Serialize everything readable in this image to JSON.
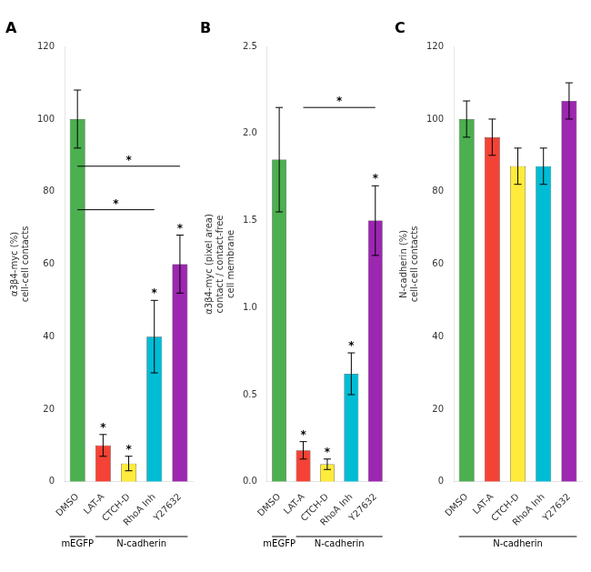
{
  "chart_data": [
    {
      "type": "bar",
      "title": "A",
      "ylabel": "α3β4-myc (%)\ncell-cell contacts",
      "categories": [
        "DMSO",
        "LAT-A",
        "CTCH-D",
        "RhoA Inh",
        "Y27632"
      ],
      "values": [
        100,
        10,
        5,
        40,
        60
      ],
      "errors": [
        8,
        3,
        2,
        10,
        8
      ],
      "colors": [
        "#4caf50",
        "#f44336",
        "#ffeb3b",
        "#00bcd4",
        "#9c27b0"
      ],
      "ylim": [
        0,
        120
      ],
      "yticks": [
        0,
        20,
        40,
        60,
        80,
        100,
        120
      ],
      "grid": false,
      "annotations": [
        {
          "text": "*",
          "category": "LAT-A"
        },
        {
          "text": "*",
          "category": "CTCH-D"
        },
        {
          "text": "*",
          "category": "RhoA Inh"
        },
        {
          "text": "*",
          "category": "Y27632"
        },
        {
          "text": "*",
          "from": "DMSO",
          "to": "RhoA Inh",
          "y": 75
        },
        {
          "text": "*",
          "from": "DMSO",
          "to": "Y27632",
          "y": 87
        },
        {
          "text": "mEGFP",
          "from": "DMSO",
          "to": "DMSO"
        },
        {
          "text": "N-cadherin",
          "from": "LAT-A",
          "to": "Y27632"
        }
      ]
    },
    {
      "type": "bar",
      "title": "B",
      "ylabel": "α3β4-myc (pixel area)\ncontact / contact-free\ncell membrane",
      "categories": [
        "DMSO",
        "LAT-A",
        "CTCH-D",
        "RhoA Inh",
        "Y27632"
      ],
      "values": [
        1.85,
        0.18,
        0.1,
        0.62,
        1.5
      ],
      "errors": [
        0.3,
        0.05,
        0.03,
        0.12,
        0.2
      ],
      "colors": [
        "#4caf50",
        "#f44336",
        "#ffeb3b",
        "#00bcd4",
        "#9c27b0"
      ],
      "ylim": [
        0,
        2.5
      ],
      "yticks": [
        {
          "value": 0,
          "label": "0.0"
        },
        0.5,
        {
          "value": 1,
          "label": "1.0"
        },
        1.5,
        {
          "value": 2,
          "label": "2.0"
        },
        2.5
      ],
      "grid": false,
      "annotations": [
        {
          "text": "*",
          "category": "LAT-A"
        },
        {
          "text": "*",
          "category": "CTCH-D"
        },
        {
          "text": "*",
          "category": "RhoA Inh"
        },
        {
          "text": "*",
          "category": "Y27632"
        },
        {
          "text": "*",
          "from": "LAT-A",
          "to": "Y27632",
          "y": 2.15
        },
        {
          "text": "mEGFP",
          "from": "DMSO",
          "to": "DMSO"
        },
        {
          "text": "N-cadherin",
          "from": "LAT-A",
          "to": "Y27632"
        }
      ]
    },
    {
      "type": "bar",
      "title": "C",
      "ylabel": "N-cadherin (%)\ncell-cell contacts",
      "categories": [
        "DMSO",
        "LAT-A",
        "CTCH-D",
        "RhoA Inh",
        "Y27632"
      ],
      "values": [
        100,
        95,
        87,
        87,
        105
      ],
      "errors": [
        5,
        5,
        5,
        5,
        5
      ],
      "colors": [
        "#4caf50",
        "#f44336",
        "#ffeb3b",
        "#00bcd4",
        "#9c27b0"
      ],
      "ylim": [
        0,
        120
      ],
      "yticks": [
        0,
        20,
        40,
        60,
        80,
        100,
        120
      ],
      "grid": false,
      "annotations": [
        {
          "text": "N-cadherin",
          "from": "DMSO",
          "to": "Y27632"
        }
      ]
    }
  ]
}
